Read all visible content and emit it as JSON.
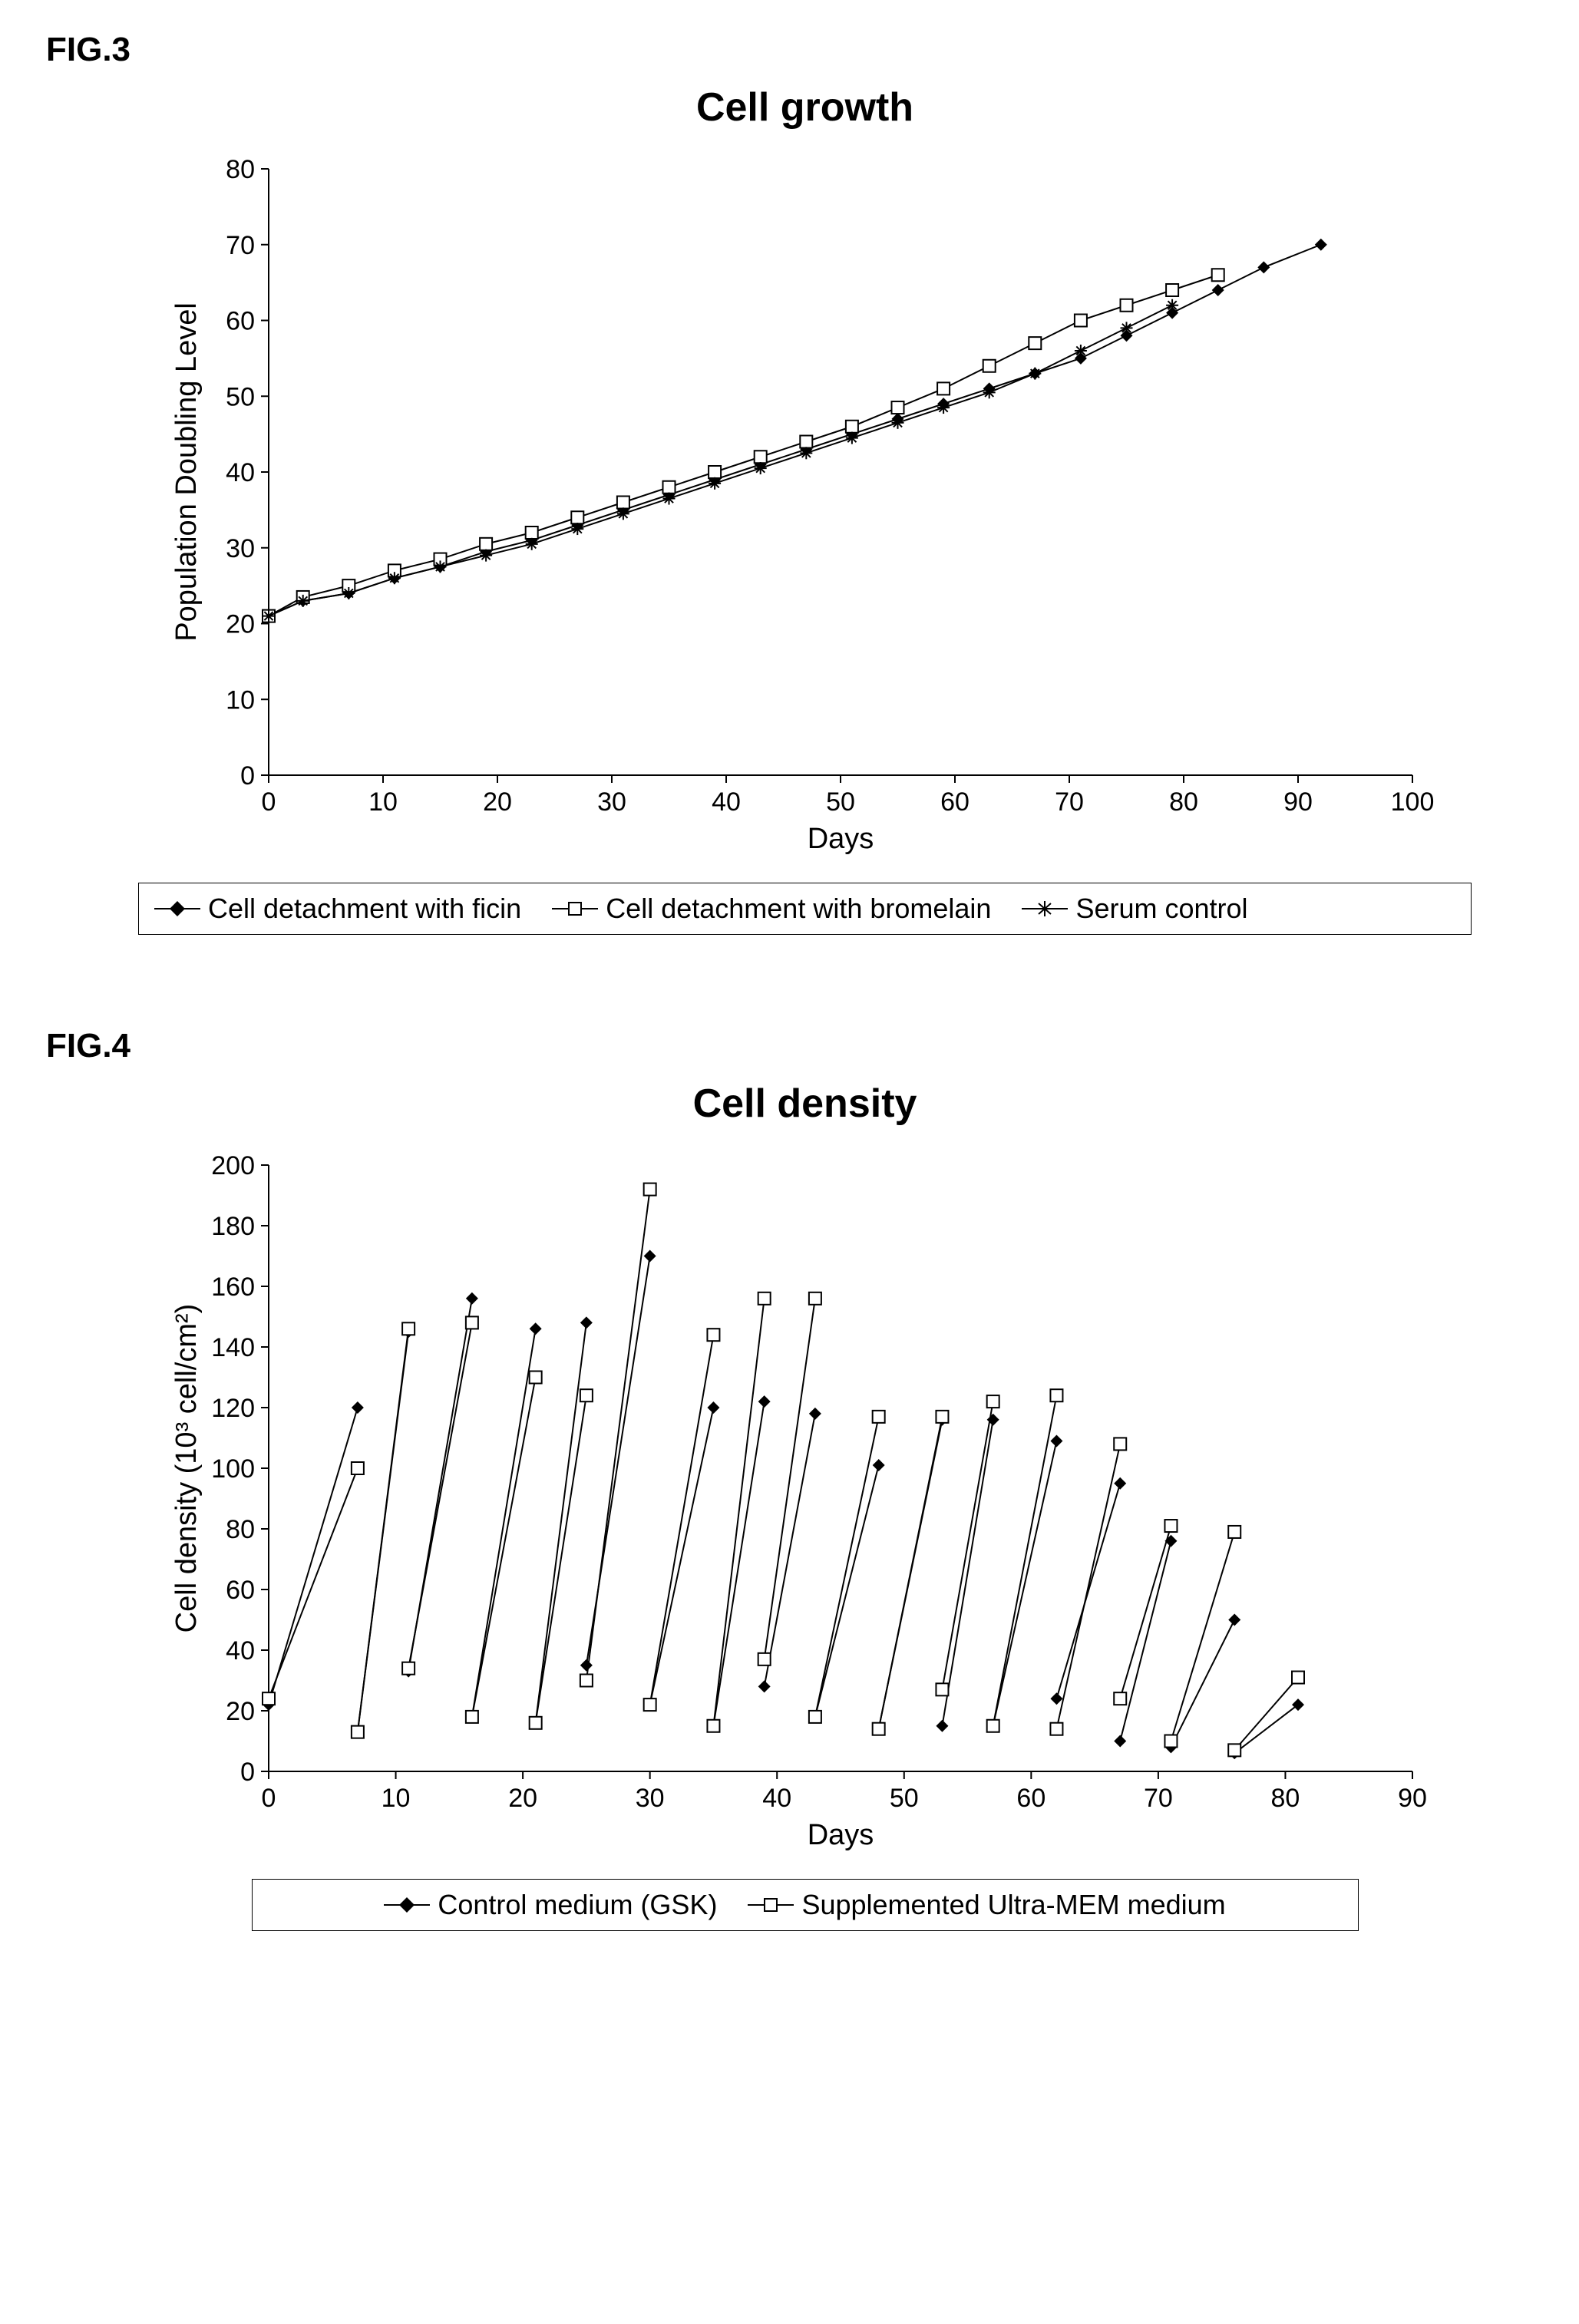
{
  "fig3": {
    "label": "FIG.3",
    "title": "Cell growth",
    "xlabel": "Days",
    "ylabel": "Population Doubling Level",
    "xlim": [
      0,
      100
    ],
    "ylim": [
      0,
      80
    ],
    "xtick_step": 10,
    "ytick_step": 10,
    "background_color": "#ffffff",
    "axis_color": "#000000",
    "tick_fontsize": 34,
    "label_fontsize": 38,
    "title_fontsize": 52,
    "series": [
      {
        "name": "Cell detachment with ficin",
        "marker": "diamond-filled",
        "color": "#000000",
        "x": [
          0,
          3,
          7,
          11,
          15,
          19,
          23,
          27,
          31,
          35,
          39,
          43,
          47,
          51,
          55,
          59,
          63,
          67,
          71,
          75,
          79,
          83,
          87,
          92
        ],
        "y": [
          21,
          23,
          24,
          26,
          27.5,
          29.5,
          31,
          33,
          35,
          37,
          39,
          41,
          43,
          45,
          47,
          49,
          51,
          53,
          55,
          58,
          61,
          64,
          67,
          70
        ]
      },
      {
        "name": "Cell detachment with bromelain",
        "marker": "square-open",
        "color": "#000000",
        "x": [
          0,
          3,
          7,
          11,
          15,
          19,
          23,
          27,
          31,
          35,
          39,
          43,
          47,
          51,
          55,
          59,
          63,
          67,
          71,
          75,
          79,
          83
        ],
        "y": [
          21,
          23.5,
          25,
          27,
          28.5,
          30.5,
          32,
          34,
          36,
          38,
          40,
          42,
          44,
          46,
          48.5,
          51,
          54,
          57,
          60,
          62,
          64,
          66
        ]
      },
      {
        "name": "Serum control",
        "marker": "asterisk",
        "color": "#000000",
        "x": [
          0,
          3,
          7,
          11,
          15,
          19,
          23,
          27,
          31,
          35,
          39,
          43,
          47,
          51,
          55,
          59,
          63,
          67,
          71,
          75,
          79
        ],
        "y": [
          21,
          23,
          24,
          26,
          27.5,
          29,
          30.5,
          32.5,
          34.5,
          36.5,
          38.5,
          40.5,
          42.5,
          44.5,
          46.5,
          48.5,
          50.5,
          53,
          56,
          59,
          62
        ]
      }
    ],
    "legend": [
      "Cell detachment with ficin",
      "Cell detachment with bromelain",
      "Serum control"
    ]
  },
  "fig4": {
    "label": "FIG.4",
    "title": "Cell density",
    "xlabel": "Days",
    "ylabel": "Cell density (10³ cell/cm²)",
    "xlim": [
      0,
      90
    ],
    "ylim": [
      0,
      200
    ],
    "xtick_step": 10,
    "ytick_step": 20,
    "background_color": "#ffffff",
    "axis_color": "#000000",
    "tick_fontsize": 34,
    "label_fontsize": 38,
    "title_fontsize": 52,
    "series": [
      {
        "name": "Control medium (GSK)",
        "marker": "diamond-filled",
        "color": "#000000",
        "segments": [
          {
            "x": [
              0,
              7
            ],
            "y": [
              22,
              120
            ]
          },
          {
            "x": [
              7,
              11
            ],
            "y": [
              13,
              145
            ]
          },
          {
            "x": [
              11,
              16
            ],
            "y": [
              33,
              156
            ]
          },
          {
            "x": [
              16,
              21
            ],
            "y": [
              18,
              146
            ]
          },
          {
            "x": [
              21,
              25
            ],
            "y": [
              16,
              148
            ]
          },
          {
            "x": [
              25,
              30
            ],
            "y": [
              35,
              170
            ]
          },
          {
            "x": [
              30,
              35
            ],
            "y": [
              22,
              120
            ]
          },
          {
            "x": [
              35,
              39
            ],
            "y": [
              15,
              122
            ]
          },
          {
            "x": [
              39,
              43
            ],
            "y": [
              28,
              118
            ]
          },
          {
            "x": [
              43,
              48
            ],
            "y": [
              18,
              101
            ]
          },
          {
            "x": [
              48,
              53
            ],
            "y": [
              14,
              116
            ]
          },
          {
            "x": [
              53,
              57
            ],
            "y": [
              15,
              116
            ]
          },
          {
            "x": [
              57,
              62
            ],
            "y": [
              15,
              109
            ]
          },
          {
            "x": [
              62,
              67
            ],
            "y": [
              24,
              95
            ]
          },
          {
            "x": [
              67,
              71
            ],
            "y": [
              10,
              76
            ]
          },
          {
            "x": [
              71,
              76
            ],
            "y": [
              8,
              50
            ]
          },
          {
            "x": [
              76,
              81
            ],
            "y": [
              6,
              22
            ]
          }
        ]
      },
      {
        "name": "Supplemented Ultra-MEM medium",
        "marker": "square-open",
        "color": "#000000",
        "segments": [
          {
            "x": [
              0,
              7
            ],
            "y": [
              24,
              100
            ]
          },
          {
            "x": [
              7,
              11
            ],
            "y": [
              13,
              146
            ]
          },
          {
            "x": [
              11,
              16
            ],
            "y": [
              34,
              148
            ]
          },
          {
            "x": [
              16,
              21
            ],
            "y": [
              18,
              130
            ]
          },
          {
            "x": [
              21,
              25
            ],
            "y": [
              16,
              124
            ]
          },
          {
            "x": [
              25,
              30
            ],
            "y": [
              30,
              192
            ]
          },
          {
            "x": [
              30,
              35
            ],
            "y": [
              22,
              144
            ]
          },
          {
            "x": [
              35,
              39
            ],
            "y": [
              15,
              156
            ]
          },
          {
            "x": [
              39,
              43
            ],
            "y": [
              37,
              156
            ]
          },
          {
            "x": [
              43,
              48
            ],
            "y": [
              18,
              117
            ]
          },
          {
            "x": [
              48,
              53
            ],
            "y": [
              14,
              117
            ]
          },
          {
            "x": [
              53,
              57
            ],
            "y": [
              27,
              122
            ]
          },
          {
            "x": [
              57,
              62
            ],
            "y": [
              15,
              124
            ]
          },
          {
            "x": [
              62,
              67
            ],
            "y": [
              14,
              108
            ]
          },
          {
            "x": [
              67,
              71
            ],
            "y": [
              24,
              81
            ]
          },
          {
            "x": [
              71,
              76
            ],
            "y": [
              10,
              79
            ]
          },
          {
            "x": [
              76,
              81
            ],
            "y": [
              7,
              31
            ]
          }
        ]
      }
    ],
    "legend": [
      "Control medium (GSK)",
      "Supplemented Ultra-MEM medium"
    ]
  }
}
